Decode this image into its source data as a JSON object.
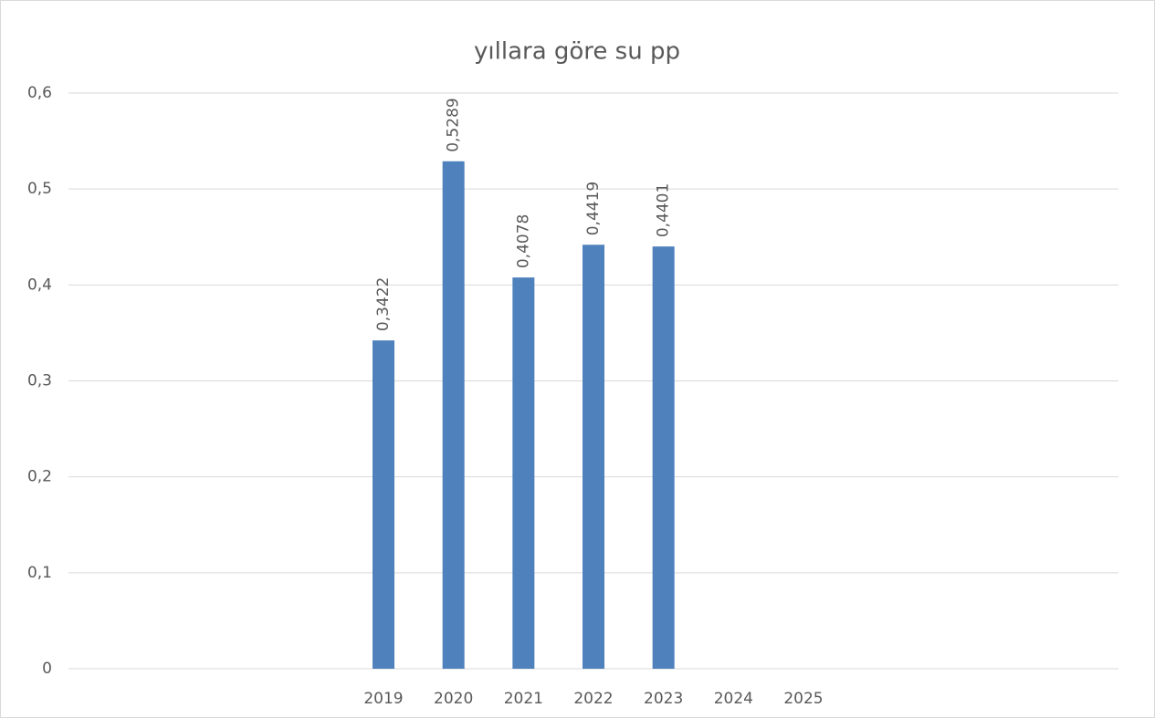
{
  "chart_data": {
    "type": "bar",
    "title": "yıllara göre su pp",
    "categories": [
      null,
      null,
      null,
      null,
      "2019",
      "2020",
      "2021",
      "2022",
      "2023",
      "2024",
      "2025",
      null,
      null,
      null,
      null
    ],
    "values": [
      null,
      null,
      null,
      null,
      0.3422,
      0.5289,
      0.4078,
      0.4419,
      0.4401,
      null,
      null,
      null,
      null,
      null,
      null
    ],
    "value_labels": [
      null,
      null,
      null,
      null,
      "0,3422",
      "0,5289",
      "0,4078",
      "0,4419",
      "0,4401",
      null,
      null,
      null,
      null,
      null,
      null
    ],
    "color": "#4f81bd",
    "ylim": [
      0,
      0.6
    ],
    "yticks": [
      0,
      {
        "value": 0.1,
        "label": "0,1"
      },
      {
        "value": 0.2,
        "label": "0,2"
      },
      {
        "value": 0.3,
        "label": "0,3"
      },
      {
        "value": 0.4,
        "label": "0,4"
      },
      {
        "value": 0.5,
        "label": "0,5"
      },
      {
        "value": 0.6,
        "label": "0,6"
      }
    ],
    "grid": true
  }
}
